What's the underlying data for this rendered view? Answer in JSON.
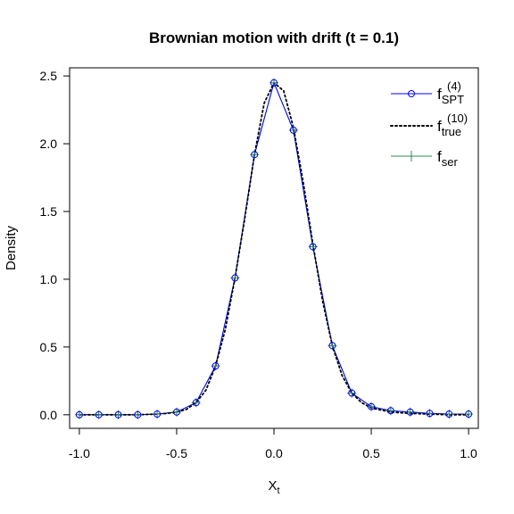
{
  "chart_data": {
    "type": "line",
    "title": "Brownian motion with drift (t = 0.1)",
    "xlabel": {
      "main": "X",
      "sub": "t"
    },
    "ylabel": "Density",
    "xlim": [
      -1.05,
      1.05
    ],
    "ylim": [
      -0.1,
      2.56
    ],
    "x_ticks": [
      -1.0,
      -0.5,
      0.0,
      0.5,
      1.0
    ],
    "x_tick_labels": [
      "-1.0",
      "-0.5",
      "0.0",
      "0.5",
      "1.0"
    ],
    "y_ticks": [
      0.0,
      0.5,
      1.0,
      1.5,
      2.0,
      2.5
    ],
    "y_tick_labels": [
      "0.0",
      "0.5",
      "1.0",
      "1.5",
      "2.0",
      "2.5"
    ],
    "grid": false,
    "legend_position": "top-right",
    "curve_x": [
      -1.0,
      -0.9,
      -0.8,
      -0.7,
      -0.6,
      -0.55,
      -0.5,
      -0.45,
      -0.4,
      -0.35,
      -0.3,
      -0.25,
      -0.2,
      -0.15,
      -0.1,
      -0.05,
      0.0,
      0.05,
      0.1,
      0.15,
      0.2,
      0.25,
      0.3,
      0.35,
      0.4,
      0.45,
      0.5,
      0.6,
      0.7,
      0.8,
      0.9,
      1.0
    ],
    "series": [
      {
        "key": "spt",
        "label_main": "f",
        "label_sub": "SPT",
        "label_sup": "(4)",
        "color": "#0000ff",
        "style": "solid-circles",
        "x": [
          -1.0,
          -0.9,
          -0.8,
          -0.7,
          -0.6,
          -0.5,
          -0.4,
          -0.3,
          -0.2,
          -0.1,
          0.0,
          0.1,
          0.2,
          0.3,
          0.4,
          0.5,
          0.6,
          0.7,
          0.8,
          0.9,
          1.0
        ],
        "y": [
          0.0,
          0.0,
          0.0,
          0.0,
          0.005,
          0.02,
          0.09,
          0.36,
          1.01,
          1.92,
          2.45,
          2.1,
          1.24,
          0.51,
          0.16,
          0.06,
          0.03,
          0.02,
          0.01,
          0.005,
          0.005
        ]
      },
      {
        "key": "true",
        "label_main": "f",
        "label_sub": "true",
        "label_sup": "(10)",
        "color": "#000000",
        "style": "dotted",
        "y": [
          0.0,
          0.0,
          0.0,
          0.0,
          0.005,
          0.01,
          0.02,
          0.04,
          0.09,
          0.18,
          0.36,
          0.63,
          1.01,
          1.45,
          1.92,
          2.3,
          2.45,
          2.39,
          2.12,
          1.72,
          1.26,
          0.84,
          0.51,
          0.29,
          0.16,
          0.09,
          0.05,
          0.02,
          0.01,
          0.005,
          0.0,
          0.0
        ]
      },
      {
        "key": "ser",
        "label_main": "f",
        "label_sub": "ser",
        "label_sup": "",
        "color": "#2e8b57",
        "style": "solid-plus",
        "x": [
          -1.0,
          -0.9,
          -0.8,
          -0.7,
          -0.6,
          -0.5,
          -0.4,
          -0.3,
          -0.2,
          -0.1,
          0.0,
          0.1,
          0.2,
          0.3,
          0.4,
          0.5,
          0.6,
          0.7,
          0.8,
          0.9,
          1.0
        ],
        "y": [
          0.0,
          0.0,
          0.0,
          0.0,
          0.005,
          0.02,
          0.09,
          0.36,
          1.01,
          1.92,
          2.45,
          2.1,
          1.24,
          0.51,
          0.16,
          0.06,
          0.03,
          0.02,
          0.01,
          0.005,
          0.005
        ]
      }
    ]
  }
}
